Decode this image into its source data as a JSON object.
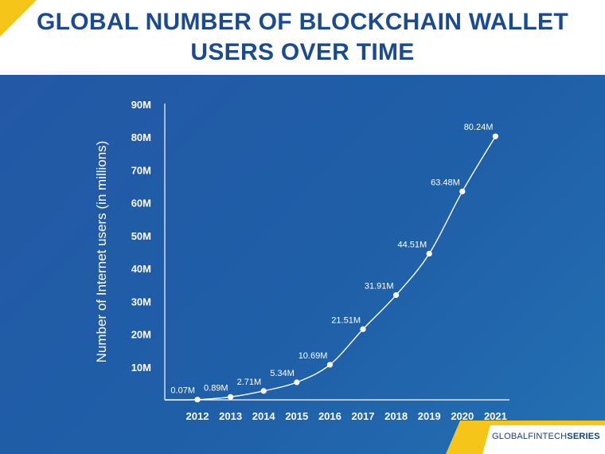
{
  "header": {
    "title_line1": "GLOBAL NUMBER OF BLOCKCHAIN WALLET",
    "title_line2": "USERS OVER TIME"
  },
  "brand": {
    "part1": "GLOBALFINTECH",
    "part2": "SERIES"
  },
  "colors": {
    "accent_yellow": "#f5c51a",
    "title_blue": "#1b4b8f",
    "panel_blue": "#2260aa"
  },
  "chart_data": {
    "type": "line",
    "title": "GLOBAL NUMBER OF BLOCKCHAIN WALLET USERS OVER TIME",
    "xlabel": "",
    "ylabel": "Number of Internet users (in millions)",
    "x": [
      "2012",
      "2013",
      "2014",
      "2015",
      "2016",
      "2017",
      "2018",
      "2019",
      "2020",
      "2021"
    ],
    "values": [
      0.07,
      0.89,
      2.71,
      5.34,
      10.69,
      21.51,
      31.91,
      44.51,
      63.48,
      80.24
    ],
    "data_labels": [
      "0.07M",
      "0.89M",
      "2.71M",
      "5.34M",
      "10.69M",
      "21.51M",
      "31.91M",
      "44.51M",
      "63.48M",
      "80.24M"
    ],
    "y_ticks": [
      10,
      20,
      30,
      40,
      50,
      60,
      70,
      80,
      90
    ],
    "y_tick_labels": [
      "10M",
      "20M",
      "30M",
      "40M",
      "50M",
      "60M",
      "70M",
      "80M",
      "90M"
    ],
    "ylim": [
      0,
      90
    ],
    "grid": false,
    "legend": "none"
  }
}
